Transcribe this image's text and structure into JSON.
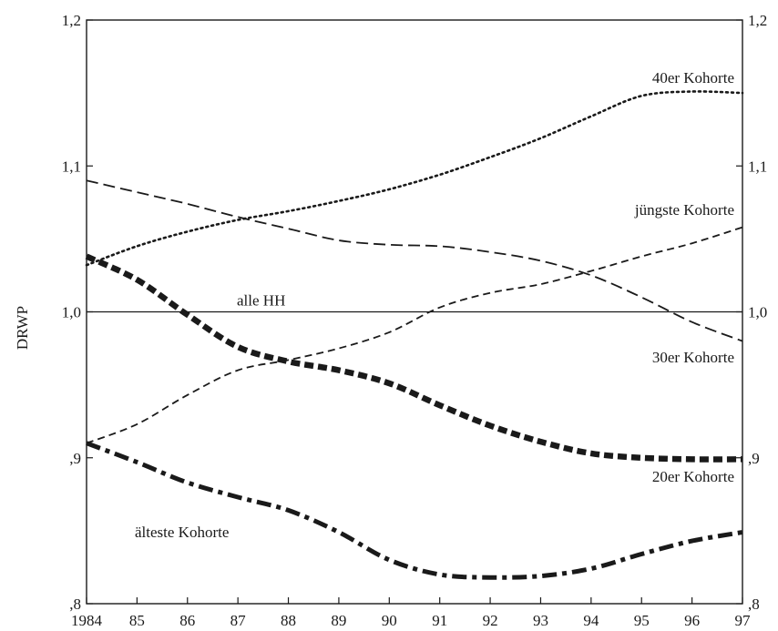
{
  "chart_data": {
    "type": "line",
    "title": "",
    "xlabel": "",
    "ylabel": "DRWP",
    "x": [
      1984,
      1985,
      1986,
      1987,
      1988,
      1989,
      1990,
      1991,
      1992,
      1993,
      1994,
      1995,
      1996,
      1997
    ],
    "x_tick_labels": [
      "1984",
      "85",
      "86",
      "87",
      "88",
      "89",
      "90",
      "91",
      "92",
      "93",
      "94",
      "95",
      "96",
      "97"
    ],
    "y_ticks": [
      0.8,
      0.9,
      1.0,
      1.1,
      1.2
    ],
    "y_tick_labels": [
      ",8",
      ",9",
      "1,0",
      "1,1",
      "1,2"
    ],
    "xlim": [
      1984,
      1997
    ],
    "ylim": [
      0.8,
      1.2
    ],
    "grid": false,
    "reference_line": {
      "y": 1.0,
      "label": "alle HH"
    },
    "series": [
      {
        "name": "40er Kohorte",
        "style": "dotted",
        "values": [
          1.032,
          1.045,
          1.055,
          1.063,
          1.069,
          1.076,
          1.084,
          1.094,
          1.106,
          1.119,
          1.134,
          1.148,
          1.151,
          1.15
        ]
      },
      {
        "name": "jüngste Kohorte",
        "style": "dashed",
        "values": [
          0.91,
          0.923,
          0.943,
          0.96,
          0.967,
          0.975,
          0.986,
          1.003,
          1.013,
          1.019,
          1.028,
          1.038,
          1.047,
          1.058
        ]
      },
      {
        "name": "30er Kohorte",
        "style": "long-dashed",
        "values": [
          1.09,
          1.082,
          1.074,
          1.065,
          1.057,
          1.049,
          1.046,
          1.045,
          1.041,
          1.035,
          1.025,
          1.01,
          0.993,
          0.98
        ]
      },
      {
        "name": "20er Kohorte",
        "style": "thick-dashed",
        "values": [
          1.038,
          1.022,
          0.998,
          0.976,
          0.966,
          0.96,
          0.951,
          0.936,
          0.922,
          0.911,
          0.903,
          0.9,
          0.899,
          0.899
        ]
      },
      {
        "name": "älteste Kohorte",
        "style": "dash-dot",
        "values": [
          0.91,
          0.897,
          0.883,
          0.873,
          0.864,
          0.849,
          0.83,
          0.82,
          0.818,
          0.819,
          0.824,
          0.834,
          0.843,
          0.849
        ]
      }
    ]
  }
}
